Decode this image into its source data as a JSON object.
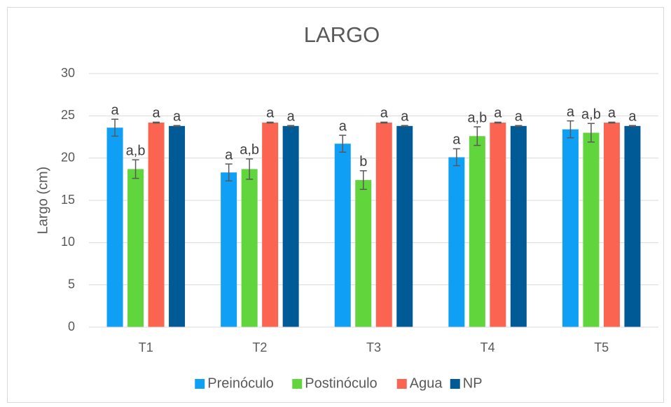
{
  "chart_data": {
    "type": "bar",
    "title": "LARGO",
    "y_label": "Largo (cm)",
    "categories": [
      "T1",
      "T2",
      "T3",
      "T4",
      "T5"
    ],
    "series": [
      {
        "name": "Preinóculo",
        "color": "#0fa0f5",
        "values": [
          23.6,
          18.3,
          21.7,
          20.1,
          23.4
        ],
        "errors": [
          1.0,
          1.0,
          1.0,
          1.0,
          1.0
        ],
        "labels": [
          "a",
          "a",
          "a",
          "a",
          "a"
        ]
      },
      {
        "name": "Postinóculo",
        "color": "#60d63c",
        "values": [
          18.7,
          18.7,
          17.4,
          22.6,
          23.0
        ],
        "errors": [
          1.1,
          1.2,
          1.1,
          1.1,
          1.1
        ],
        "labels": [
          "a,b",
          "a,b",
          "b",
          "a,b",
          "a,b"
        ]
      },
      {
        "name": "Agua",
        "color": "#fa6450",
        "values": [
          24.2,
          24.2,
          24.2,
          24.2,
          24.2
        ],
        "errors": [
          0.05,
          0.05,
          0.05,
          0.05,
          0.05
        ],
        "labels": [
          "a",
          "a",
          "a",
          "a",
          "a"
        ]
      },
      {
        "name": "NP",
        "color": "#005a96",
        "values": [
          23.8,
          23.8,
          23.8,
          23.8,
          23.8
        ],
        "errors": [
          0.05,
          0.05,
          0.05,
          0.05,
          0.05
        ],
        "labels": [
          "a",
          "a",
          "a",
          "a",
          "a"
        ]
      }
    ],
    "ylim": [
      0,
      30
    ],
    "yticks": [
      0,
      5,
      10,
      15,
      20,
      25,
      30
    ],
    "grid": true,
    "legend": "bottom"
  }
}
